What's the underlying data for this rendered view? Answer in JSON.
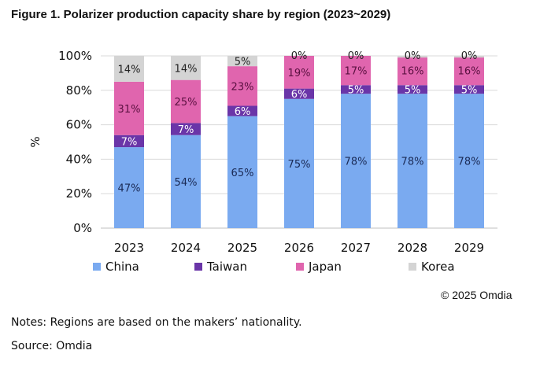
{
  "figure_title": "Figure 1. Polarizer production capacity share by region (2023~2029)",
  "copyright": "© 2025 Omdia",
  "notes": "Notes: Regions are based on the makers’ nationality.",
  "source": "Source: Omdia",
  "colors": {
    "China": "#7aaaf0",
    "Taiwan": "#6a35a8",
    "Japan": "#e065ae",
    "Korea": "#d4d4d4",
    "grid": "#d9d9d9"
  },
  "chart_data": {
    "type": "bar",
    "stacked": true,
    "title": "Figure 1. Polarizer production capacity share by region (2023~2029)",
    "ylabel": "%",
    "xlabel": "",
    "ylim": [
      0,
      100
    ],
    "yticks": [
      "0%",
      "20%",
      "40%",
      "60%",
      "80%",
      "100%"
    ],
    "ytick_values": [
      0,
      20,
      40,
      60,
      80,
      100
    ],
    "categories": [
      "2023",
      "2024",
      "2025",
      "2026",
      "2027",
      "2028",
      "2029"
    ],
    "series": [
      {
        "name": "China",
        "values": [
          47,
          54,
          65,
          75,
          78,
          78,
          78
        ],
        "labels": [
          "47%",
          "54%",
          "65%",
          "75%",
          "78%",
          "78%",
          "78%"
        ]
      },
      {
        "name": "Taiwan",
        "values": [
          7,
          7,
          6,
          6,
          5,
          5,
          5
        ],
        "labels": [
          "7%",
          "7%",
          "6%",
          "6%",
          "5%",
          "5%",
          "5%"
        ]
      },
      {
        "name": "Japan",
        "values": [
          31,
          25,
          23,
          19,
          17,
          16,
          16
        ],
        "labels": [
          "31%",
          "25%",
          "23%",
          "19%",
          "17%",
          "16%",
          "16%"
        ]
      },
      {
        "name": "Korea",
        "values": [
          14,
          14,
          5,
          0,
          0,
          0,
          0
        ],
        "labels": [
          "14%",
          "14%",
          "5%",
          "0%",
          "0%",
          "0%",
          "0%"
        ]
      }
    ],
    "grid": true,
    "legend": "bottom"
  }
}
